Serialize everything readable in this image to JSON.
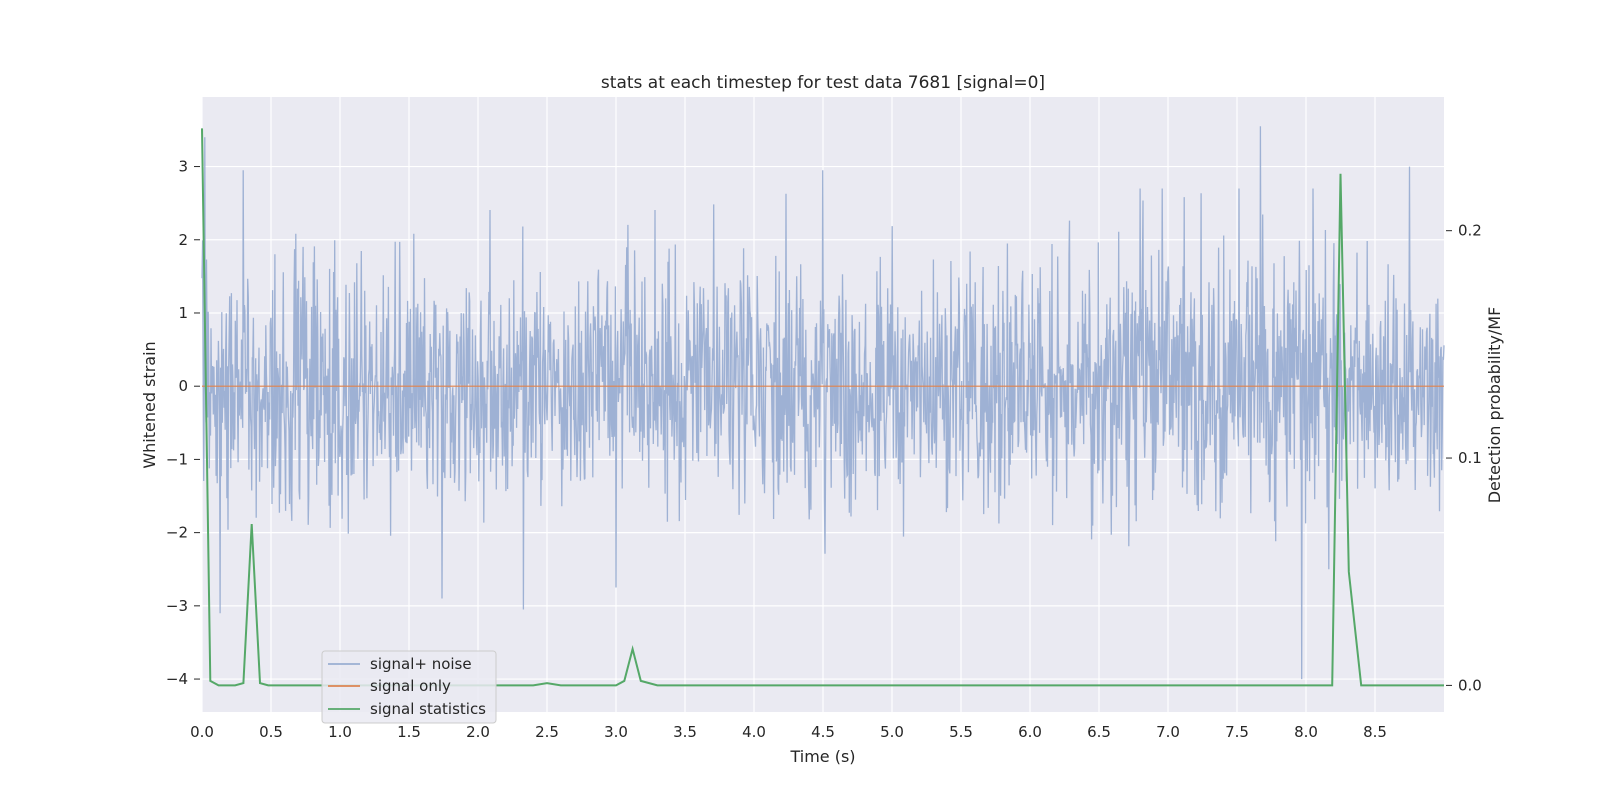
{
  "chart_data": {
    "type": "line",
    "title": "stats at each timestep for test data 7681 [signal=0]",
    "xlabel": "Time (s)",
    "ylabel": "Whitened strain",
    "y2label": "Detection probability/MF",
    "xlim": [
      0,
      9.0
    ],
    "ylim": [
      -4.45,
      3.95
    ],
    "y2lim": [
      -0.0117,
      0.2588
    ],
    "x_ticks": [
      "0.0",
      "0.5",
      "1.0",
      "1.5",
      "2.0",
      "2.5",
      "3.0",
      "3.5",
      "4.0",
      "4.5",
      "5.0",
      "5.5",
      "6.0",
      "6.5",
      "7.0",
      "7.5",
      "8.0",
      "8.5"
    ],
    "x_tick_values": [
      0,
      0.5,
      1.0,
      1.5,
      2.0,
      2.5,
      3.0,
      3.5,
      4.0,
      4.5,
      5.0,
      5.5,
      6.0,
      6.5,
      7.0,
      7.5,
      8.0,
      8.5
    ],
    "y_ticks": [
      "−4",
      "−3",
      "−2",
      "−1",
      "0",
      "1",
      "2",
      "3"
    ],
    "y_tick_values": [
      -4,
      -3,
      -2,
      -1,
      0,
      1,
      2,
      3
    ],
    "y2_ticks": [
      "0.0",
      "0.1",
      "0.2"
    ],
    "y2_tick_values": [
      0.0,
      0.1,
      0.2
    ],
    "grid": true,
    "legend_position": "lower-left",
    "colors": {
      "background": "#eaeaf2",
      "grid": "#ffffff",
      "noise": "#9aaed2",
      "signal": "#dd8452",
      "stats": "#55a868",
      "text": "#262626"
    },
    "series": [
      {
        "name": "signal+ noise",
        "axis": "left",
        "description_values": "whitened noise, approx ±1.5 band with spikes to ±3",
        "peaks": [
          {
            "x": 0.02,
            "y": 3.4
          },
          {
            "x": 0.3,
            "y": 2.95
          },
          {
            "x": 0.13,
            "y": -3.1
          },
          {
            "x": 2.33,
            "y": -3.05
          },
          {
            "x": 3.0,
            "y": -2.75
          },
          {
            "x": 4.5,
            "y": 2.95
          },
          {
            "x": 7.67,
            "y": 3.55
          },
          {
            "x": 7.97,
            "y": -4.0
          },
          {
            "x": 8.75,
            "y": 3.0
          }
        ]
      },
      {
        "name": "signal only",
        "axis": "left",
        "x": [
          0,
          9.0
        ],
        "y": [
          0,
          0
        ]
      },
      {
        "name": "signal statistics",
        "axis": "right",
        "x": [
          0.0,
          0.06,
          0.12,
          0.24,
          0.3,
          0.36,
          0.42,
          0.48,
          1.0,
          2.0,
          2.4,
          2.5,
          2.6,
          3.0,
          3.06,
          3.12,
          3.18,
          3.3,
          4.0,
          5.0,
          5.7,
          6.0,
          7.0,
          7.8,
          7.92,
          8.1,
          8.19,
          8.25,
          8.31,
          8.4,
          8.5,
          9.0
        ],
        "y": [
          0.245,
          0.002,
          0.0,
          0.0,
          0.001,
          0.071,
          0.001,
          0.0,
          0.0,
          0.0,
          0.0,
          0.001,
          0.0,
          0.0,
          0.002,
          0.016,
          0.002,
          0.0,
          0.0,
          0.0,
          0.0,
          0.0,
          0.0,
          0.0,
          0.0,
          0.0,
          0.0,
          0.225,
          0.05,
          0.0,
          0.0,
          0.0
        ]
      }
    ]
  }
}
